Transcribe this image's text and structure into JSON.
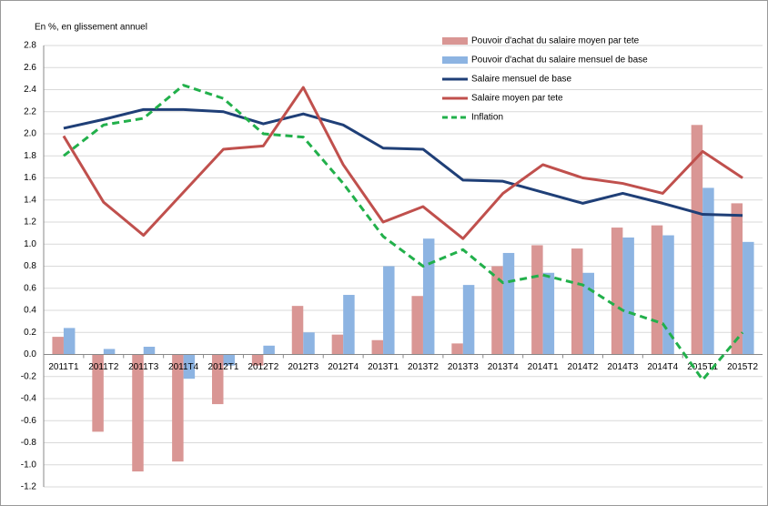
{
  "chart_data": {
    "type": "bar-line",
    "ylabel": "En %, en glissement annuel",
    "categories": [
      "2011T1",
      "2011T2",
      "2011T3",
      "2011T4",
      "2012T1",
      "2012T2",
      "2012T3",
      "2012T4",
      "2013T1",
      "2013T2",
      "2013T3",
      "2013T4",
      "2014T1",
      "2014T2",
      "2014T3",
      "2014T4",
      "2015T1",
      "2015T2"
    ],
    "series": [
      {
        "name": "Pouvoir d'achat du salaire moyen par tete",
        "type": "bar",
        "color": "#d99694",
        "values": [
          0.16,
          -0.7,
          -1.06,
          -0.97,
          -0.45,
          -0.1,
          0.44,
          0.18,
          0.13,
          0.53,
          0.1,
          0.8,
          0.99,
          0.96,
          1.15,
          1.17,
          2.08,
          1.37
        ]
      },
      {
        "name": "Pouvoir d'achat du salaire mensuel de base",
        "type": "bar",
        "color": "#8db4e2",
        "values": [
          0.24,
          0.05,
          0.07,
          -0.22,
          -0.1,
          0.08,
          0.2,
          0.54,
          0.8,
          1.05,
          0.63,
          0.92,
          0.74,
          0.74,
          1.06,
          1.08,
          1.51,
          1.02
        ]
      },
      {
        "name": "Salaire mensuel de base",
        "type": "line",
        "color": "#1f3f77",
        "values": [
          2.05,
          2.13,
          2.22,
          2.22,
          2.2,
          2.09,
          2.18,
          2.08,
          1.87,
          1.86,
          1.58,
          1.57,
          1.47,
          1.37,
          1.46,
          1.37,
          1.27,
          1.26
        ]
      },
      {
        "name": "Salaire moyen par tete",
        "type": "line",
        "color": "#c0504d",
        "values": [
          1.98,
          1.38,
          1.08,
          1.47,
          1.86,
          1.89,
          2.42,
          1.72,
          1.2,
          1.34,
          1.05,
          1.46,
          1.72,
          1.6,
          1.55,
          1.46,
          1.84,
          1.6
        ]
      },
      {
        "name": "Inflation",
        "type": "line",
        "color": "#22b04b",
        "dashed": true,
        "values": [
          1.8,
          2.08,
          2.14,
          2.44,
          2.32,
          2.0,
          1.97,
          1.55,
          1.07,
          0.8,
          0.95,
          0.65,
          0.72,
          0.63,
          0.4,
          0.28,
          -0.23,
          0.2
        ]
      }
    ],
    "ylim": [
      -1.2,
      2.8
    ],
    "yticks": [
      -1.2,
      {
        "value": -1,
        "label": "-1.0"
      },
      -0.8,
      -0.6,
      -0.4,
      -0.2,
      {
        "value": 0,
        "label": "0.0"
      },
      0.2,
      0.4,
      0.6,
      0.8,
      {
        "value": 1,
        "label": "1.0"
      },
      1.2,
      1.4,
      1.6,
      1.8,
      {
        "value": 2,
        "label": "2.0"
      },
      2.2,
      2.4,
      2.6,
      2.8
    ],
    "grid": true,
    "legend": "top-right"
  }
}
